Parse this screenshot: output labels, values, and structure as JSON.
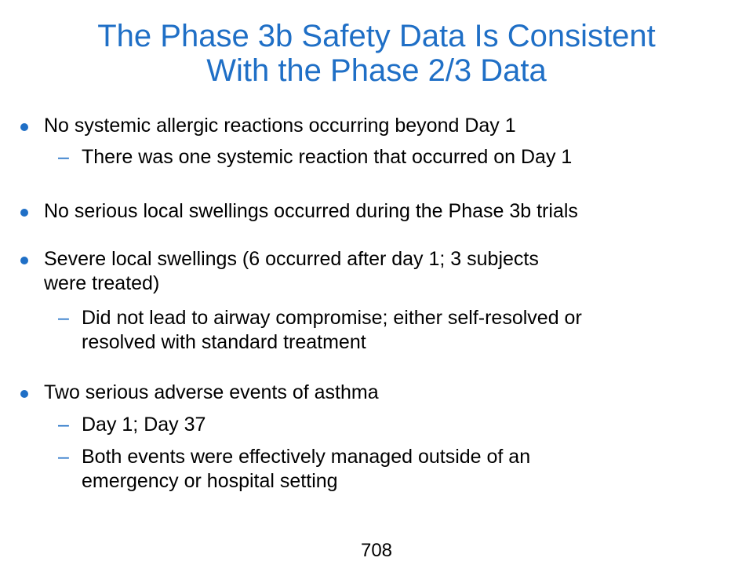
{
  "slide": {
    "title_line1": "The Phase 3b Safety Data Is Consistent",
    "title_line2": "With the Phase 2/3 Data",
    "accent_color": "#1f6fc6",
    "bullet_icon": "filled-circle-bullet",
    "sub_bullet_icon": "en-dash-bullet",
    "bullets": [
      {
        "text": "No systemic allergic reactions occurring beyond Day 1",
        "sub": [
          "There was one systemic reaction that occurred on Day 1"
        ]
      },
      {
        "text": "No serious local swellings occurred during the Phase 3b trials",
        "sub": []
      },
      {
        "text_line1": "Severe local swellings (6 occurred after day 1; 3 subjects",
        "text_line2": "were treated)",
        "sub": [
          {
            "line1": "Did not lead to airway compromise; either self-resolved or",
            "line2": "resolved with standard treatment"
          }
        ]
      },
      {
        "text": "Two serious adverse events of asthma",
        "sub": [
          "Day 1; Day 37",
          {
            "line1": "Both events were effectively managed outside of an",
            "line2": "emergency or hospital setting"
          }
        ]
      }
    ],
    "page_number": "708"
  }
}
